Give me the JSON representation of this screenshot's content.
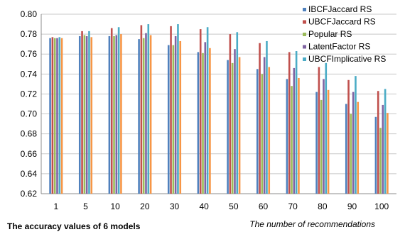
{
  "chart_data": {
    "type": "bar",
    "categories": [
      "1",
      "5",
      "10",
      "20",
      "30",
      "40",
      "50",
      "60",
      "70",
      "80",
      "90",
      "100"
    ],
    "ylim": [
      0.62,
      0.8
    ],
    "yticks": [
      "0.62",
      "0.64",
      "0.66",
      "0.68",
      "0.70",
      "0.72",
      "0.74",
      "0.76",
      "0.78",
      "0.80"
    ],
    "grid": true,
    "legend_position": "top-right",
    "xlabel": "The number of recommendations",
    "caption": "The accuracy values of 6 models",
    "series": [
      {
        "name": "IBCFJaccard RS",
        "color": "#4F81BD",
        "values": [
          0.776,
          0.778,
          0.778,
          0.775,
          0.769,
          0.762,
          0.754,
          0.745,
          0.735,
          0.722,
          0.71,
          0.697
        ]
      },
      {
        "name": "UBCFJaccard RS",
        "color": "#C0504D",
        "values": [
          0.777,
          0.783,
          0.786,
          0.789,
          0.788,
          0.785,
          0.78,
          0.771,
          0.762,
          0.747,
          0.734,
          0.723
        ]
      },
      {
        "name": "Popular RS",
        "color": "#9BBB59",
        "values": [
          0.776,
          0.779,
          0.778,
          0.776,
          0.769,
          0.761,
          0.751,
          0.74,
          0.728,
          0.714,
          0.7,
          0.686
        ]
      },
      {
        "name": "LatentFactor RS",
        "color": "#8064A2",
        "values": [
          0.776,
          0.778,
          0.779,
          0.781,
          0.778,
          0.772,
          0.765,
          0.757,
          0.746,
          0.735,
          0.722,
          0.709
        ]
      },
      {
        "name": "UBCFImplicative RS",
        "color": "#4BACC6",
        "values": [
          0.777,
          0.783,
          0.787,
          0.79,
          0.79,
          0.787,
          0.782,
          0.773,
          0.763,
          0.751,
          0.738,
          0.725
        ]
      },
      {
        "name": "",
        "color": "#F79646",
        "values": [
          0.776,
          0.777,
          0.78,
          0.779,
          0.773,
          0.766,
          0.757,
          0.747,
          0.736,
          0.724,
          0.712,
          0.701
        ]
      }
    ]
  }
}
